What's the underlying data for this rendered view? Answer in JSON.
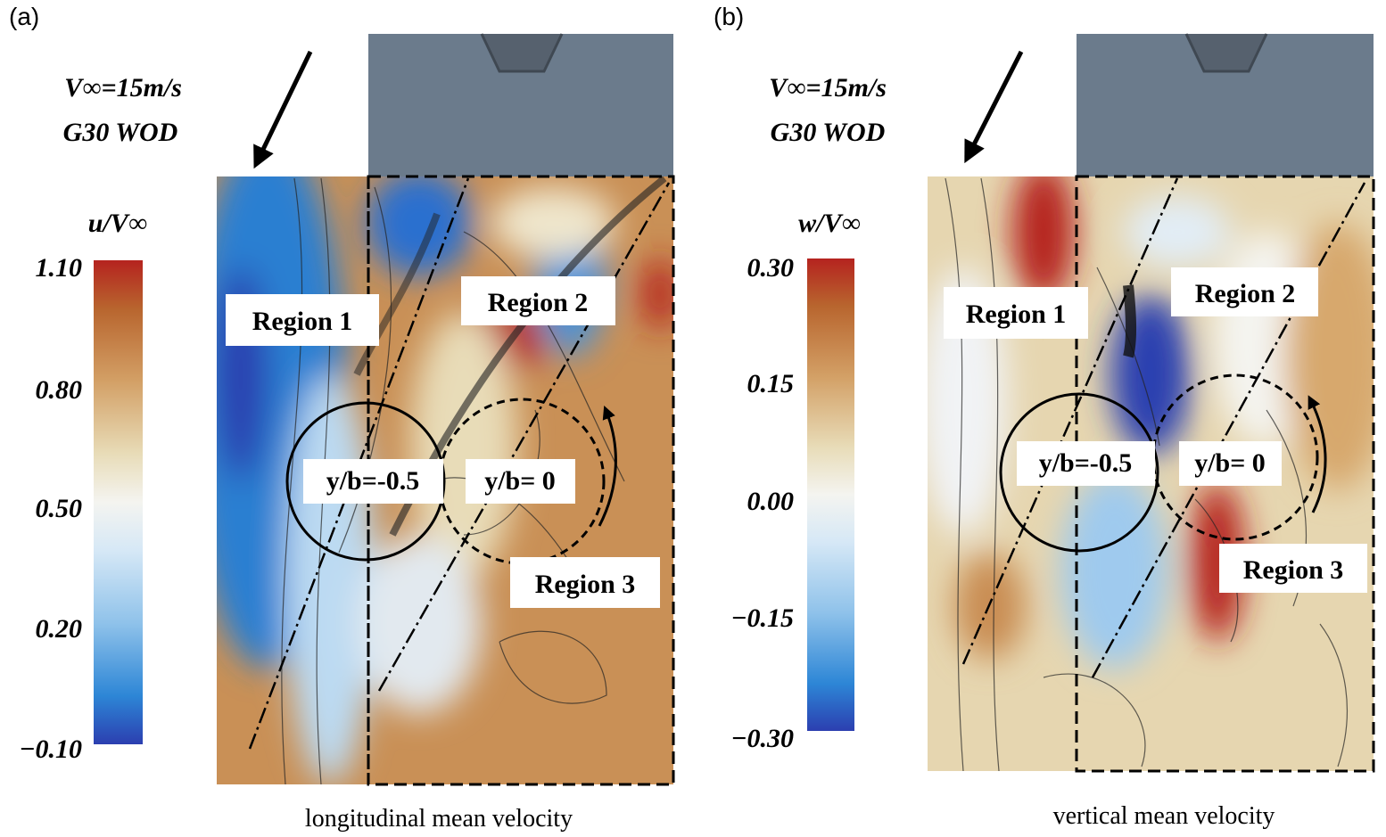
{
  "panels": [
    {
      "label": "(a)",
      "freestream": "V∞=15m/s",
      "condition": "G30 WOD",
      "colorbar": {
        "label": "u/V∞",
        "ticks": [
          "1.10",
          "0.80",
          "0.50",
          "0.20",
          "−0.10"
        ]
      },
      "regions": [
        "Region 1",
        "Region 2",
        "Region 3"
      ],
      "stations": [
        "y/b=-0.5",
        "y/b= 0"
      ],
      "caption": "longitudinal mean velocity"
    },
    {
      "label": "(b)",
      "freestream": "V∞=15m/s",
      "condition": "G30 WOD",
      "colorbar": {
        "label": "w/V∞",
        "ticks": [
          "0.30",
          "0.15",
          "0.00",
          "−0.15",
          "−0.30"
        ]
      },
      "regions": [
        "Region 1",
        "Region 2",
        "Region 3"
      ],
      "stations": [
        "y/b=-0.5",
        "y/b= 0"
      ],
      "caption": "vertical mean velocity"
    }
  ]
}
